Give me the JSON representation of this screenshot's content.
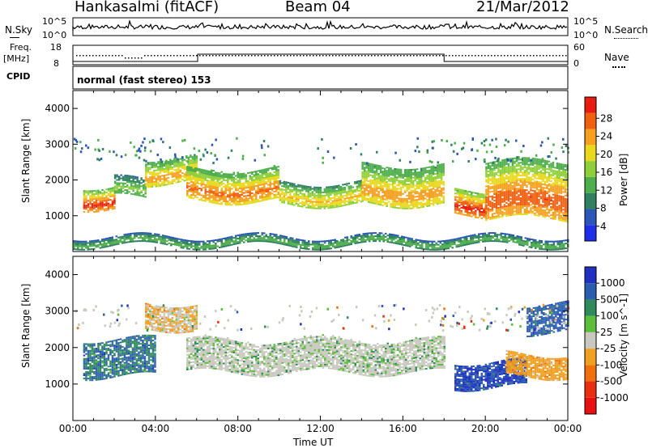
{
  "header": {
    "station": "Hankasalmi (fitACF)",
    "beam": "Beam 04",
    "date": "21/Mar/2012"
  },
  "noise_panel": {
    "left_label": "N.Sky",
    "right_label": "N.Search",
    "tick_top": "10^5",
    "tick_bottom": "10^0",
    "tick_top_r": "10^5",
    "tick_bottom_r": "10^0"
  },
  "freq_panel": {
    "left_label_1": "Freq.",
    "left_label_2": "[MHz]",
    "left_tick_top": "18",
    "left_tick_bottom": "8",
    "right_label": "Nave",
    "right_tick_top": "60",
    "right_tick_bottom": "0"
  },
  "cpid_panel": {
    "label": "CPID",
    "text": "normal (fast stereo) 153"
  },
  "colors": {
    "power_scale": [
      "#1f2ee8",
      "#2a56b8",
      "#2f8060",
      "#4fae4c",
      "#8fd03a",
      "#e8d81e",
      "#f5a020",
      "#f06010",
      "#e81c10"
    ],
    "velocity_scale": [
      "#2030c0",
      "#2c5eb0",
      "#2f8a5c",
      "#5cbd3a",
      "#c8c8c0",
      "#f0a020",
      "#f07010",
      "#e83010",
      "#e81010"
    ],
    "range_gray": "#c9c9c0"
  },
  "chart_data": [
    {
      "type": "heatmap",
      "panel": "power",
      "xlabel": "Time UT",
      "ylabel": "Slant Range [km]",
      "x_ticks": [
        "00:00",
        "04:00",
        "08:00",
        "12:00",
        "16:00",
        "20:00",
        "00:00"
      ],
      "y_ticks": [
        "1000",
        "2000",
        "3000",
        "4000"
      ],
      "ylim": [
        0,
        4500
      ],
      "colorbar_label": "Power [dB]",
      "colorbar_ticks": [
        "4",
        "8",
        "12",
        "16",
        "20",
        "24",
        "28"
      ],
      "bands": [
        {
          "t_start": 0.5,
          "t_end": 2.0,
          "r_low": 1200,
          "r_high": 1800,
          "level": 28
        },
        {
          "t_start": 2.0,
          "t_end": 3.5,
          "r_low": 1500,
          "r_high": 2000,
          "level": 14
        },
        {
          "t_start": 3.5,
          "t_end": 6.0,
          "r_low": 1900,
          "r_high": 2600,
          "level": 22
        },
        {
          "t_start": 5.5,
          "t_end": 10.0,
          "r_low": 1400,
          "r_high": 2300,
          "level": 24
        },
        {
          "t_start": 10.0,
          "t_end": 14.0,
          "r_low": 1300,
          "r_high": 1900,
          "level": 20
        },
        {
          "t_start": 14.0,
          "t_end": 18.0,
          "r_low": 1300,
          "r_high": 2400,
          "level": 22
        },
        {
          "t_start": 18.5,
          "t_end": 20.0,
          "r_low": 1000,
          "r_high": 1700,
          "level": 28
        },
        {
          "t_start": 20.0,
          "t_end": 24.0,
          "r_low": 900,
          "r_high": 2500,
          "level": 26
        },
        {
          "t_start": 0.0,
          "t_end": 24.0,
          "r_low": 150,
          "r_high": 400,
          "level": 12
        }
      ]
    },
    {
      "type": "heatmap",
      "panel": "velocity",
      "xlabel": "Time UT",
      "ylabel": "Slant Range [km]",
      "x_ticks": [
        "00:00",
        "04:00",
        "08:00",
        "12:00",
        "16:00",
        "20:00",
        "00:00"
      ],
      "y_ticks": [
        "1000",
        "2000",
        "3000",
        "4000"
      ],
      "ylim": [
        0,
        4500
      ],
      "colorbar_label": "Velocity [m s^-1]",
      "colorbar_ticks": [
        "1000",
        "500",
        "100",
        "25",
        "-25",
        "-100",
        "-500",
        "-1000"
      ],
      "bands": [
        {
          "t_start": 0.5,
          "t_end": 4.0,
          "r_low": 1200,
          "r_high": 2200,
          "level": 100
        },
        {
          "t_start": 3.5,
          "t_end": 6.0,
          "r_low": 2500,
          "r_high": 3200,
          "level": -100
        },
        {
          "t_start": 5.5,
          "t_end": 18.0,
          "r_low": 1300,
          "r_high": 2200,
          "level": 0
        },
        {
          "t_start": 18.5,
          "t_end": 22.0,
          "r_low": 900,
          "r_high": 1600,
          "level": 500
        },
        {
          "t_start": 21.0,
          "t_end": 24.0,
          "r_low": 1200,
          "r_high": 1800,
          "level": -300
        },
        {
          "t_start": 22.0,
          "t_end": 24.0,
          "r_low": 2400,
          "r_high": 3200,
          "level": 200
        }
      ]
    }
  ]
}
